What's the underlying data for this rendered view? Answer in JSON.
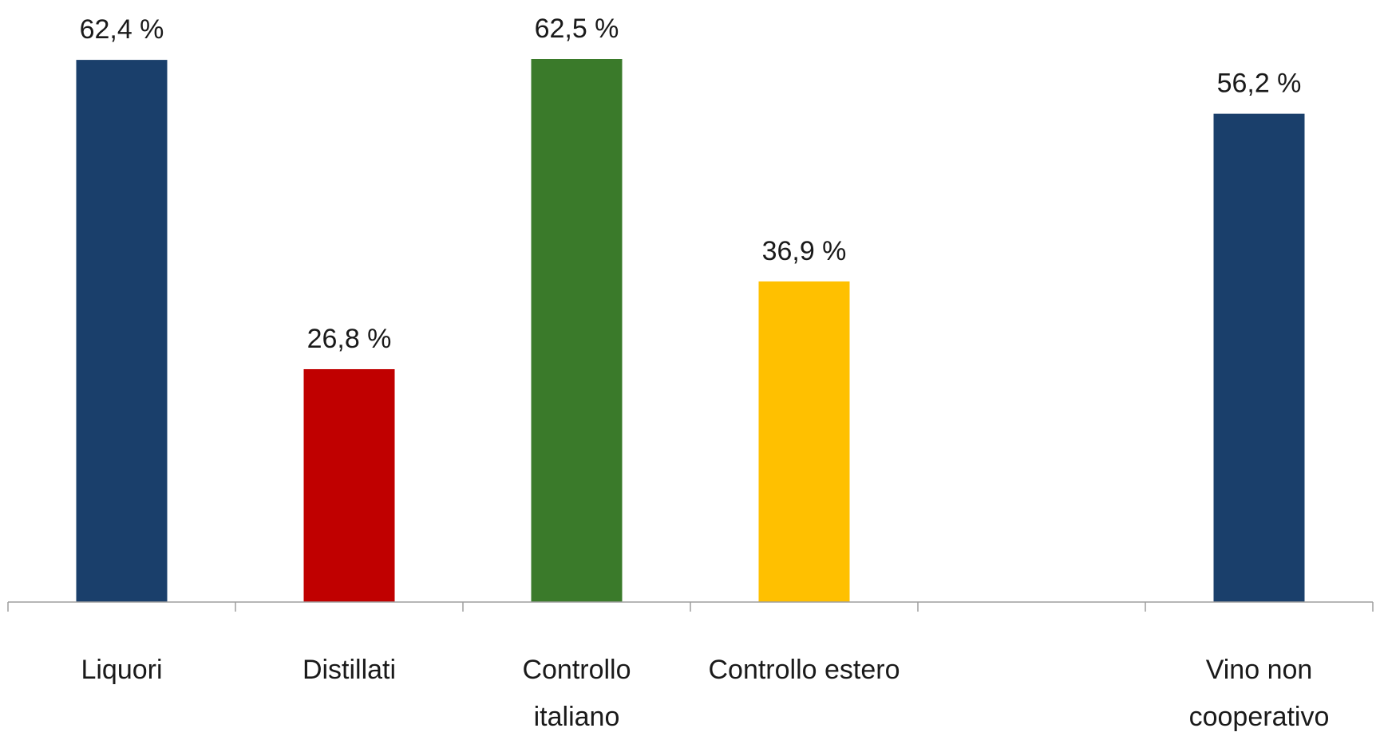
{
  "chart_data": {
    "type": "bar",
    "categories": [
      [
        "Liquori"
      ],
      [
        "Distillati"
      ],
      [
        "Controllo",
        "italiano"
      ],
      [
        "Controllo estero"
      ],
      [],
      [
        "Vino non",
        "cooperativo"
      ]
    ],
    "values": [
      62.4,
      26.8,
      62.5,
      36.9,
      null,
      56.2
    ],
    "value_labels": [
      "62,4 %",
      "26,8 %",
      "62,5 %",
      "36,9 %",
      "",
      "56,2 %"
    ],
    "colors": [
      "#1a3f6b",
      "#c00000",
      "#3a7a2a",
      "#ffc000",
      null,
      "#1a3f6b"
    ],
    "title": "",
    "xlabel": "",
    "ylabel": "",
    "ylim": [
      0,
      62.5
    ],
    "grid": false,
    "legend": "none"
  }
}
